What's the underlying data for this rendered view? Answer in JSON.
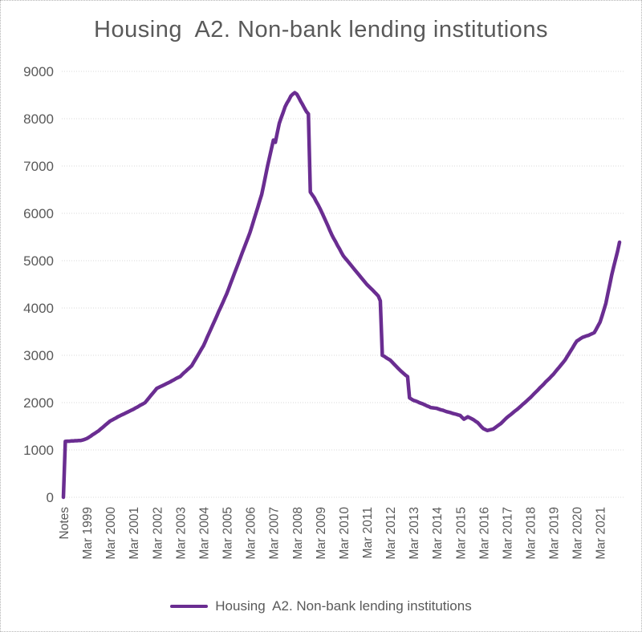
{
  "page": {
    "background": "#ffffff",
    "border_color": "#b4b4b4"
  },
  "title": {
    "text": "Housing  A2. Non-bank lending institutions",
    "color": "#595959"
  },
  "legend": {
    "label": "Housing  A2. Non-bank lending institutions",
    "swatch_color": "#6A2D91",
    "position": "bottom"
  },
  "chart_data": {
    "type": "line",
    "title": "Housing  A2. Non-bank lending institutions",
    "series_name": "Housing  A2. Non-bank lending institutions",
    "line_color": "#6A2D91",
    "line_width": 4.5,
    "grid": "horizontal-dotted",
    "grid_color": "#d9d9d9",
    "axis_label_color": "#595959",
    "legend_position": "bottom",
    "x_unit": "monthly",
    "x_tick_every": 12,
    "x_tick_labels": [
      "Notes",
      "Mar 1999",
      "Mar 2000",
      "Mar 2001",
      "Mar 2002",
      "Mar 2003",
      "Mar 2004",
      "Mar 2005",
      "Mar 2006",
      "Mar 2007",
      "Mar 2008",
      "Mar 2009",
      "Mar 2010",
      "Mar 2011",
      "Mar 2012",
      "Mar 2013",
      "Mar 2014",
      "Mar 2015",
      "Mar 2016",
      "Mar 2017",
      "Mar 2018",
      "Mar 2019",
      "Mar 2020",
      "Mar 2021"
    ],
    "y_ticks": [
      0,
      1000,
      2000,
      3000,
      4000,
      5000,
      6000,
      7000,
      8000,
      9000
    ],
    "ylim": [
      0,
      9000
    ],
    "values": [
      0,
      1180,
      1185,
      1185,
      1190,
      1190,
      1195,
      1195,
      1200,
      1200,
      1210,
      1225,
      1240,
      1265,
      1290,
      1320,
      1345,
      1375,
      1400,
      1435,
      1470,
      1505,
      1540,
      1575,
      1610,
      1630,
      1655,
      1675,
      1700,
      1720,
      1740,
      1760,
      1780,
      1800,
      1820,
      1840,
      1860,
      1885,
      1905,
      1930,
      1955,
      1975,
      2000,
      2050,
      2100,
      2150,
      2200,
      2250,
      2300,
      2320,
      2340,
      2360,
      2380,
      2400,
      2420,
      2440,
      2465,
      2485,
      2510,
      2530,
      2550,
      2590,
      2630,
      2665,
      2705,
      2740,
      2780,
      2850,
      2920,
      2990,
      3060,
      3130,
      3200,
      3290,
      3385,
      3475,
      3565,
      3660,
      3750,
      3840,
      3935,
      4025,
      4115,
      4210,
      4300,
      4410,
      4520,
      4625,
      4735,
      4840,
      4950,
      5060,
      5170,
      5275,
      5385,
      5490,
      5600,
      5730,
      5870,
      6000,
      6130,
      6270,
      6400,
      6600,
      6800,
      7000,
      7180,
      7370,
      7550,
      7500,
      7700,
      7900,
      8020,
      8130,
      8250,
      8330,
      8400,
      8480,
      8520,
      8550,
      8520,
      8450,
      8370,
      8300,
      8220,
      8150,
      8100,
      6450,
      6390,
      6330,
      6250,
      6180,
      6100,
      6010,
      5920,
      5830,
      5740,
      5640,
      5550,
      5470,
      5400,
      5320,
      5250,
      5170,
      5100,
      5050,
      5000,
      4950,
      4900,
      4850,
      4800,
      4750,
      4700,
      4650,
      4600,
      4550,
      4500,
      4460,
      4420,
      4380,
      4335,
      4295,
      4250,
      4150,
      3000,
      2980,
      2950,
      2925,
      2900,
      2860,
      2815,
      2775,
      2730,
      2690,
      2650,
      2615,
      2580,
      2550,
      2100,
      2075,
      2050,
      2035,
      2020,
      2000,
      1985,
      1970,
      1950,
      1930,
      1915,
      1895,
      1890,
      1885,
      1880,
      1865,
      1850,
      1840,
      1825,
      1810,
      1800,
      1790,
      1775,
      1765,
      1755,
      1740,
      1730,
      1690,
      1650,
      1675,
      1700,
      1680,
      1660,
      1635,
      1605,
      1580,
      1535,
      1490,
      1450,
      1430,
      1410,
      1420,
      1430,
      1440,
      1470,
      1500,
      1530,
      1560,
      1600,
      1640,
      1680,
      1715,
      1745,
      1780,
      1815,
      1845,
      1880,
      1915,
      1955,
      1990,
      2025,
      2065,
      2100,
      2140,
      2185,
      2225,
      2265,
      2310,
      2350,
      2390,
      2435,
      2475,
      2515,
      2560,
      2600,
      2650,
      2700,
      2750,
      2800,
      2850,
      2900,
      2970,
      3035,
      3100,
      3165,
      3235,
      3300,
      3325,
      3355,
      3380,
      3395,
      3410,
      3420,
      3440,
      3460,
      3480,
      3550,
      3625,
      3700,
      3830,
      3965,
      4100,
      4300,
      4500,
      4700,
      4870,
      5030,
      5200,
      5390
    ]
  }
}
